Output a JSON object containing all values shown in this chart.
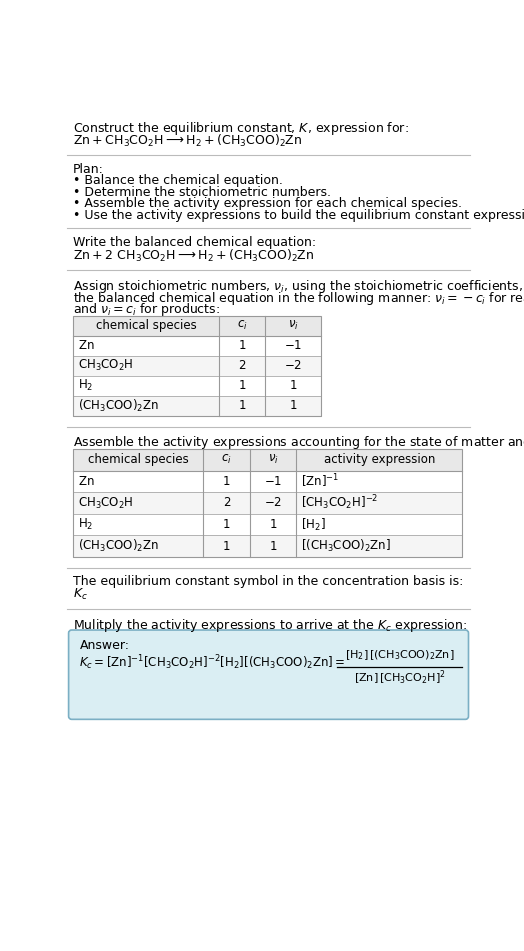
{
  "title_line1": "Construct the equilibrium constant, $K$, expression for:",
  "title_line2": "$\\mathrm{Zn + CH_3CO_2H \\longrightarrow H_2 + (CH_3COO)_2Zn}$",
  "plan_header": "Plan:",
  "plan_items": [
    "• Balance the chemical equation.",
    "• Determine the stoichiometric numbers.",
    "• Assemble the activity expression for each chemical species.",
    "• Use the activity expressions to build the equilibrium constant expression."
  ],
  "balanced_header": "Write the balanced chemical equation:",
  "balanced_eq": "$\\mathrm{Zn + 2\\ CH_3CO_2H \\longrightarrow H_2 + (CH_3COO)_2Zn}$",
  "stoich_intro_line1": "Assign stoichiometric numbers, $\\nu_i$, using the stoichiometric coefficients, $c_i$, from",
  "stoich_intro_line2": "the balanced chemical equation in the following manner: $\\nu_i = -c_i$ for reactants",
  "stoich_intro_line3": "and $\\nu_i = c_i$ for products:",
  "table1_headers": [
    "chemical species",
    "$c_i$",
    "$\\nu_i$"
  ],
  "table1_rows": [
    [
      "$\\mathrm{Zn}$",
      "1",
      "$-1$"
    ],
    [
      "$\\mathrm{CH_3CO_2H}$",
      "2",
      "$-2$"
    ],
    [
      "$\\mathrm{H_2}$",
      "1",
      "1"
    ],
    [
      "$\\mathrm{(CH_3COO)_2Zn}$",
      "1",
      "1"
    ]
  ],
  "activity_intro": "Assemble the activity expressions accounting for the state of matter and $\\nu_i$:",
  "table2_headers": [
    "chemical species",
    "$c_i$",
    "$\\nu_i$",
    "activity expression"
  ],
  "table2_rows": [
    [
      "$\\mathrm{Zn}$",
      "1",
      "$-1$",
      "$[\\mathrm{Zn}]^{-1}$"
    ],
    [
      "$\\mathrm{CH_3CO_2H}$",
      "2",
      "$-2$",
      "$[\\mathrm{CH_3CO_2H}]^{-2}$"
    ],
    [
      "$\\mathrm{H_2}$",
      "1",
      "1",
      "$[\\mathrm{H_2}]$"
    ],
    [
      "$\\mathrm{(CH_3COO)_2Zn}$",
      "1",
      "1",
      "$[(\\mathrm{CH_3COO})_2\\mathrm{Zn}]$"
    ]
  ],
  "kc_symbol_line1": "The equilibrium constant symbol in the concentration basis is:",
  "kc_symbol": "$K_c$",
  "multiply_line": "Mulitply the activity expressions to arrive at the $K_c$ expression:",
  "answer_label": "Answer:",
  "answer_line1": "$K_c = [\\mathrm{Zn}]^{-1} [\\mathrm{CH_3CO_2H}]^{-2} [\\mathrm{H_2}] [(\\mathrm{CH_3COO})_2\\mathrm{Zn}] = $",
  "answer_frac_num": "$[\\mathrm{H_2}]\\,[(\\mathrm{CH_3COO})_2\\mathrm{Zn}]$",
  "answer_frac_den": "$[\\mathrm{Zn}]\\,[\\mathrm{CH_3CO_2H}]^2$",
  "answer_box_color": "#daeef3",
  "answer_box_border": "#7bafc4",
  "bg_color": "#ffffff",
  "text_color": "#000000",
  "table_header_bg": "#e8e8e8",
  "table_row_bg1": "#ffffff",
  "table_row_bg2": "#f5f5f5",
  "table_border_color": "#999999",
  "separator_color": "#bbbbbb",
  "font_size": 9.0
}
